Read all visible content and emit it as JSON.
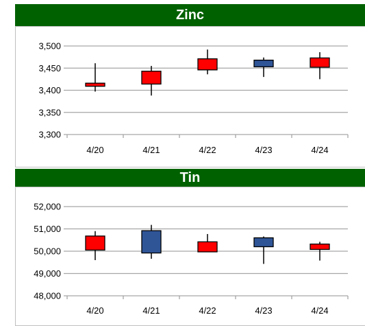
{
  "chart_data": [
    {
      "type": "candlestick",
      "title": "Zinc",
      "categories": [
        "4/20",
        "4/21",
        "4/22",
        "4/23",
        "4/24"
      ],
      "ylim": [
        3300,
        3500
      ],
      "yticks": [
        "3,300",
        "3,350",
        "3,400",
        "3,450",
        "3,500"
      ],
      "ytick_values": [
        3300,
        3350,
        3400,
        3450,
        3500
      ],
      "grid": true,
      "colors": {
        "up": "#ff0000",
        "down": "#2f5597",
        "grid": "#a6a6a6"
      },
      "candles": [
        {
          "open": 3409,
          "close": 3416,
          "high": 3461,
          "low": 3397
        },
        {
          "open": 3414,
          "close": 3443,
          "high": 3455,
          "low": 3388
        },
        {
          "open": 3446,
          "close": 3471,
          "high": 3492,
          "low": 3436
        },
        {
          "open": 3468,
          "close": 3453,
          "high": 3474,
          "low": 3430
        },
        {
          "open": 3452,
          "close": 3473,
          "high": 3486,
          "low": 3425
        }
      ]
    },
    {
      "type": "candlestick",
      "title": "Tin",
      "categories": [
        "4/20",
        "4/21",
        "4/22",
        "4/23",
        "4/24"
      ],
      "ylim": [
        48000,
        52000
      ],
      "yticks": [
        "48,000",
        "49,000",
        "50,000",
        "51,000",
        "52,000"
      ],
      "ytick_values": [
        48000,
        49000,
        50000,
        51000,
        52000
      ],
      "grid": true,
      "colors": {
        "up": "#ff0000",
        "down": "#2f5597",
        "grid": "#a6a6a6"
      },
      "candles": [
        {
          "open": 50050,
          "close": 50680,
          "high": 50900,
          "low": 49600
        },
        {
          "open": 50920,
          "close": 49920,
          "high": 51180,
          "low": 49660
        },
        {
          "open": 49970,
          "close": 50420,
          "high": 50770,
          "low": 49970
        },
        {
          "open": 50600,
          "close": 50200,
          "high": 50660,
          "low": 49430
        },
        {
          "open": 50080,
          "close": 50320,
          "high": 50420,
          "low": 49580
        }
      ]
    }
  ]
}
